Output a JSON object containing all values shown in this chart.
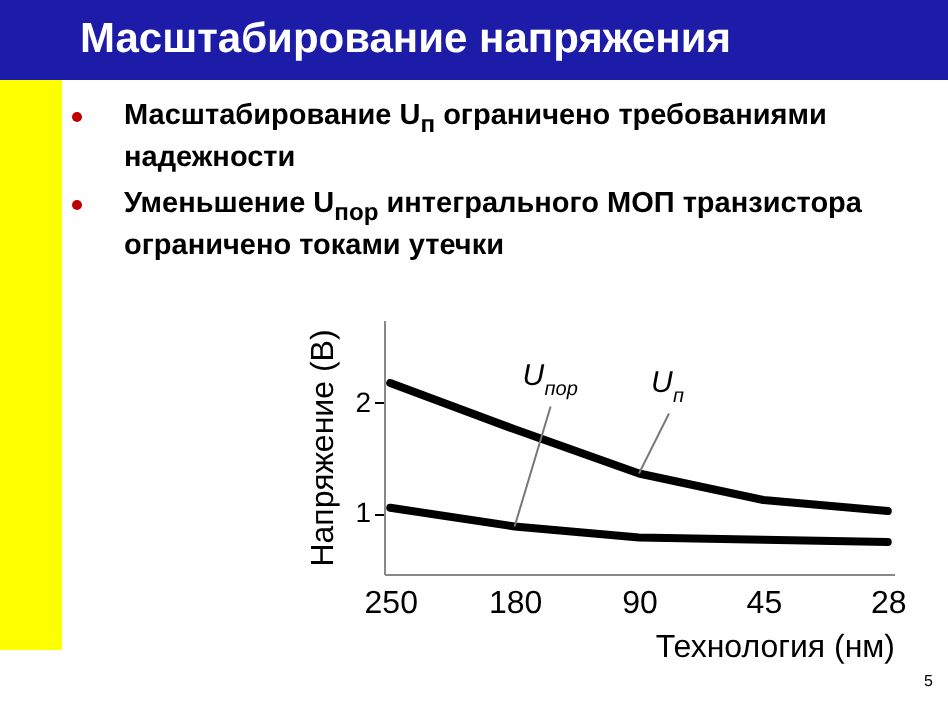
{
  "chart_data": {
    "type": "line",
    "title": "Масштабирование напряжения",
    "annotations": [
      "Масштабирование U$_{п}$ ограничено требованиями надежности",
      "Уменьшение U$_{пор}$ интегрального МОП транзистора ограничено токами утечки",
      "5"
    ],
    "xlabel": "Технология (нм)",
    "ylabel": "Напряжение (В)",
    "categories": [
      "250",
      "180",
      "90",
      "45",
      "28"
    ],
    "series": [
      {
        "name": "U$_{п}$",
        "color": "#000000",
        "values": [
          2.18,
          1.76,
          1.36,
          1.12,
          1.02
        ]
      },
      {
        "name": "U$_{пор}$",
        "color": "#000000",
        "values": [
          1.05,
          0.88,
          0.78,
          0.76,
          0.74
        ]
      }
    ],
    "ylim": [
      0.45,
      2.75
    ],
    "yticks": [
      1,
      2
    ],
    "grid": false,
    "marker": "none",
    "line_style": "solid"
  }
}
